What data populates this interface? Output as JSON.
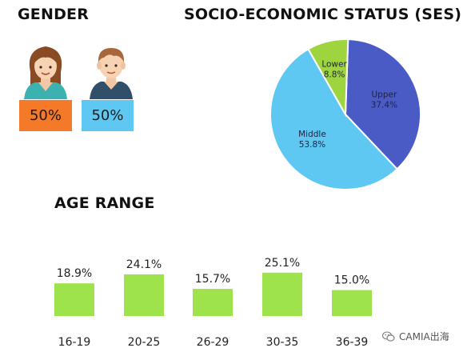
{
  "gender": {
    "heading": "GENDER",
    "female": {
      "icon": "female-avatar-icon",
      "value": "50%",
      "color": "#f47a2a"
    },
    "male": {
      "icon": "male-avatar-icon",
      "value": "50%",
      "color": "#5ec8f2"
    }
  },
  "ses": {
    "heading": "SOCIO-ECONOMIC STATUS (SES)"
  },
  "age": {
    "heading": "AGE RANGE"
  },
  "watermark": {
    "icon": "wechat-icon",
    "text": "CAMIA出海"
  },
  "chart_data": [
    {
      "type": "pie",
      "title": "SOCIO-ECONOMIC STATUS (SES)",
      "slices": [
        {
          "name": "Upper",
          "value": 37.4,
          "label": "37.4%",
          "color": "#4a5bc6"
        },
        {
          "name": "Middle",
          "value": 53.8,
          "label": "53.8%",
          "color": "#5ec8f2"
        },
        {
          "name": "Lower",
          "value": 8.8,
          "label": "8.8%",
          "color": "#9ed53f"
        }
      ]
    },
    {
      "type": "bar",
      "title": "AGE RANGE",
      "categories": [
        "16-19",
        "20-25",
        "26-29",
        "30-35",
        "36-39"
      ],
      "values": [
        18.9,
        24.1,
        15.7,
        25.1,
        15.0
      ],
      "value_labels": [
        "18.9%",
        "24.1%",
        "15.7%",
        "25.1%",
        "15.0%"
      ],
      "color": "#9ee34c",
      "grid": false,
      "axes_visible": false
    }
  ]
}
